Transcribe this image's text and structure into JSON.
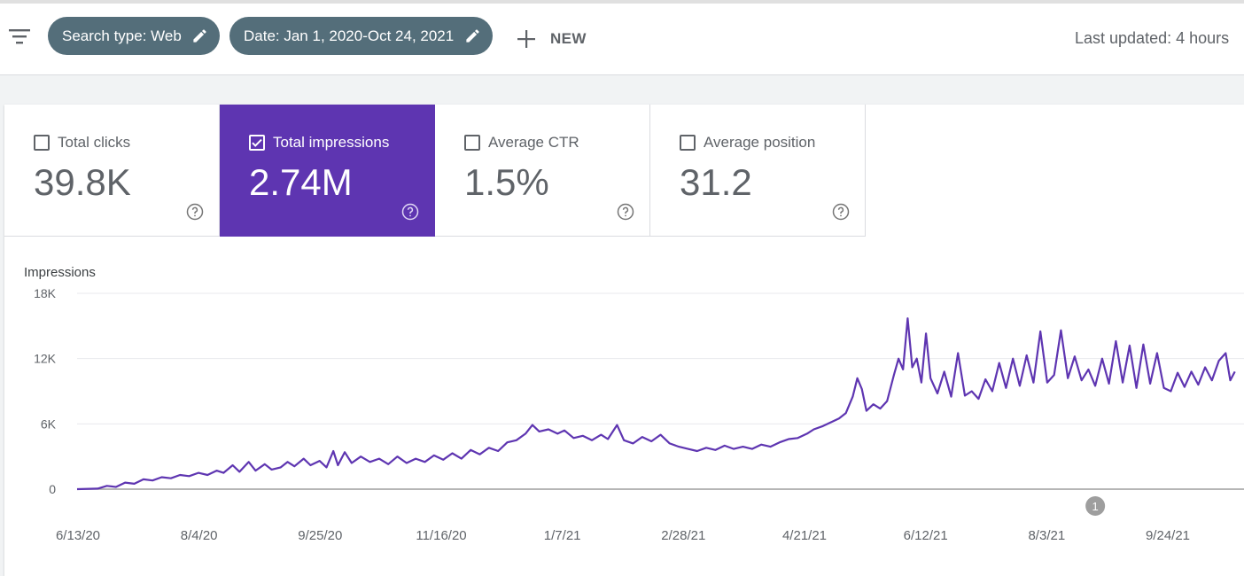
{
  "toolbar": {
    "filter_icon": "filter-list-icon",
    "chips": [
      {
        "label": "Search type: Web",
        "icon": "pencil-icon"
      },
      {
        "label": "Date: Jan 1, 2020-Oct 24, 2021",
        "icon": "pencil-icon"
      }
    ],
    "new_label": "NEW",
    "new_icon": "plus-icon",
    "last_updated": "Last updated: 4 hours"
  },
  "metrics": [
    {
      "label": "Total clicks",
      "value": "39.8K",
      "selected": false
    },
    {
      "label": "Total impressions",
      "value": "2.74M",
      "selected": true
    },
    {
      "label": "Average CTR",
      "value": "1.5%",
      "selected": false
    },
    {
      "label": "Average position",
      "value": "31.2",
      "selected": false
    }
  ],
  "colors": {
    "accent": "#5e35b1",
    "chip": "#546e7a",
    "line": "#5e35b1"
  },
  "chart_data": {
    "type": "line",
    "ylabel": "Impressions",
    "ylim": [
      0,
      18000
    ],
    "y_ticks": [
      {
        "value": 0,
        "label": "0"
      },
      {
        "value": 6000,
        "label": "6K"
      },
      {
        "value": 12000,
        "label": "12K"
      },
      {
        "value": 18000,
        "label": "18K"
      }
    ],
    "x_ticks": [
      "6/13/20",
      "8/4/20",
      "9/25/20",
      "11/16/20",
      "1/7/21",
      "2/28/21",
      "4/21/21",
      "6/12/21",
      "8/3/21",
      "9/24/21"
    ],
    "x_start": "2020-06-01",
    "x_end": "2021-10-24",
    "grid": true,
    "annotation": {
      "date": "2021-08-20",
      "label": "1"
    },
    "series": [
      {
        "values": [
          [
            "2020-06-01",
            0
          ],
          [
            "2020-06-10",
            50
          ],
          [
            "2020-06-14",
            300
          ],
          [
            "2020-06-18",
            200
          ],
          [
            "2020-06-22",
            600
          ],
          [
            "2020-06-26",
            500
          ],
          [
            "2020-06-30",
            900
          ],
          [
            "2020-07-04",
            800
          ],
          [
            "2020-07-08",
            1100
          ],
          [
            "2020-07-12",
            1000
          ],
          [
            "2020-07-16",
            1300
          ],
          [
            "2020-07-20",
            1200
          ],
          [
            "2020-07-24",
            1500
          ],
          [
            "2020-07-28",
            1300
          ],
          [
            "2020-08-01",
            1700
          ],
          [
            "2020-08-04",
            1500
          ],
          [
            "2020-08-08",
            2200
          ],
          [
            "2020-08-11",
            1600
          ],
          [
            "2020-08-15",
            2500
          ],
          [
            "2020-08-18",
            1700
          ],
          [
            "2020-08-22",
            2300
          ],
          [
            "2020-08-25",
            1800
          ],
          [
            "2020-08-29",
            2000
          ],
          [
            "2020-09-01",
            2500
          ],
          [
            "2020-09-04",
            2100
          ],
          [
            "2020-09-08",
            2800
          ],
          [
            "2020-09-11",
            2200
          ],
          [
            "2020-09-15",
            2600
          ],
          [
            "2020-09-18",
            2000
          ],
          [
            "2020-09-21",
            3500
          ],
          [
            "2020-09-23",
            2200
          ],
          [
            "2020-09-26",
            3400
          ],
          [
            "2020-09-29",
            2400
          ],
          [
            "2020-10-03",
            3000
          ],
          [
            "2020-10-07",
            2500
          ],
          [
            "2020-10-11",
            2800
          ],
          [
            "2020-10-15",
            2300
          ],
          [
            "2020-10-19",
            3000
          ],
          [
            "2020-10-23",
            2400
          ],
          [
            "2020-10-27",
            2800
          ],
          [
            "2020-10-31",
            2500
          ],
          [
            "2020-11-04",
            3100
          ],
          [
            "2020-11-08",
            2700
          ],
          [
            "2020-11-12",
            3300
          ],
          [
            "2020-11-16",
            2800
          ],
          [
            "2020-11-20",
            3600
          ],
          [
            "2020-11-24",
            3200
          ],
          [
            "2020-11-28",
            3800
          ],
          [
            "2020-12-02",
            3500
          ],
          [
            "2020-12-06",
            4300
          ],
          [
            "2020-12-10",
            4500
          ],
          [
            "2020-12-14",
            5100
          ],
          [
            "2020-12-17",
            5900
          ],
          [
            "2020-12-20",
            5300
          ],
          [
            "2020-12-24",
            5500
          ],
          [
            "2020-12-28",
            5100
          ],
          [
            "2020-12-31",
            5400
          ],
          [
            "2021-01-04",
            4700
          ],
          [
            "2021-01-08",
            4900
          ],
          [
            "2021-01-12",
            4500
          ],
          [
            "2021-01-16",
            5000
          ],
          [
            "2021-01-19",
            4600
          ],
          [
            "2021-01-23",
            5900
          ],
          [
            "2021-01-26",
            4500
          ],
          [
            "2021-01-30",
            4200
          ],
          [
            "2021-02-03",
            4800
          ],
          [
            "2021-02-07",
            4400
          ],
          [
            "2021-02-11",
            5000
          ],
          [
            "2021-02-15",
            4200
          ],
          [
            "2021-02-19",
            3900
          ],
          [
            "2021-02-23",
            3700
          ],
          [
            "2021-02-27",
            3500
          ],
          [
            "2021-03-03",
            3800
          ],
          [
            "2021-03-07",
            3600
          ],
          [
            "2021-03-11",
            4000
          ],
          [
            "2021-03-15",
            3700
          ],
          [
            "2021-03-19",
            3900
          ],
          [
            "2021-03-23",
            3700
          ],
          [
            "2021-03-27",
            4100
          ],
          [
            "2021-03-31",
            3900
          ],
          [
            "2021-04-04",
            4300
          ],
          [
            "2021-04-08",
            4600
          ],
          [
            "2021-04-12",
            4700
          ],
          [
            "2021-04-16",
            5100
          ],
          [
            "2021-04-19",
            5500
          ],
          [
            "2021-04-23",
            5800
          ],
          [
            "2021-04-27",
            6200
          ],
          [
            "2021-04-30",
            6500
          ],
          [
            "2021-05-03",
            7000
          ],
          [
            "2021-05-06",
            8500
          ],
          [
            "2021-05-08",
            10200
          ],
          [
            "2021-05-10",
            9200
          ],
          [
            "2021-05-12",
            7200
          ],
          [
            "2021-05-15",
            7800
          ],
          [
            "2021-05-18",
            7400
          ],
          [
            "2021-05-21",
            8100
          ],
          [
            "2021-05-24",
            10500
          ],
          [
            "2021-05-26",
            12000
          ],
          [
            "2021-05-28",
            11000
          ],
          [
            "2021-05-30",
            15700
          ],
          [
            "2021-06-01",
            11200
          ],
          [
            "2021-06-03",
            12000
          ],
          [
            "2021-06-05",
            9800
          ],
          [
            "2021-06-07",
            14300
          ],
          [
            "2021-06-09",
            10200
          ],
          [
            "2021-06-12",
            8800
          ],
          [
            "2021-06-15",
            10800
          ],
          [
            "2021-06-18",
            8500
          ],
          [
            "2021-06-21",
            12500
          ],
          [
            "2021-06-24",
            8600
          ],
          [
            "2021-06-27",
            9000
          ],
          [
            "2021-06-30",
            8300
          ],
          [
            "2021-07-03",
            10100
          ],
          [
            "2021-07-06",
            9000
          ],
          [
            "2021-07-09",
            11600
          ],
          [
            "2021-07-12",
            9300
          ],
          [
            "2021-07-15",
            12000
          ],
          [
            "2021-07-18",
            9500
          ],
          [
            "2021-07-21",
            12300
          ],
          [
            "2021-07-24",
            9800
          ],
          [
            "2021-07-27",
            14500
          ],
          [
            "2021-07-30",
            9800
          ],
          [
            "2021-08-02",
            10500
          ],
          [
            "2021-08-05",
            14600
          ],
          [
            "2021-08-08",
            10200
          ],
          [
            "2021-08-11",
            12200
          ],
          [
            "2021-08-14",
            10000
          ],
          [
            "2021-08-17",
            11000
          ],
          [
            "2021-08-20",
            9500
          ],
          [
            "2021-08-23",
            12000
          ],
          [
            "2021-08-26",
            9700
          ],
          [
            "2021-08-29",
            13600
          ],
          [
            "2021-09-01",
            9800
          ],
          [
            "2021-09-04",
            13200
          ],
          [
            "2021-09-07",
            9300
          ],
          [
            "2021-09-10",
            13300
          ],
          [
            "2021-09-13",
            9700
          ],
          [
            "2021-09-16",
            12500
          ],
          [
            "2021-09-19",
            9300
          ],
          [
            "2021-09-22",
            9000
          ],
          [
            "2021-09-25",
            10700
          ],
          [
            "2021-09-28",
            9400
          ],
          [
            "2021-10-01",
            10800
          ],
          [
            "2021-10-04",
            9600
          ],
          [
            "2021-10-07",
            11200
          ],
          [
            "2021-10-10",
            10000
          ],
          [
            "2021-10-13",
            11800
          ],
          [
            "2021-10-16",
            12500
          ],
          [
            "2021-10-18",
            10000
          ],
          [
            "2021-10-20",
            10800
          ]
        ]
      }
    ]
  }
}
